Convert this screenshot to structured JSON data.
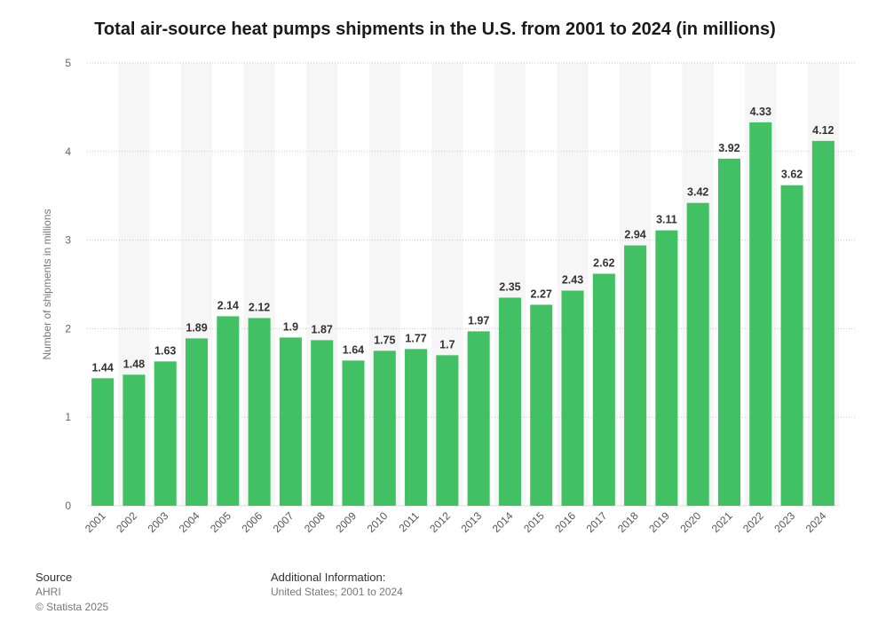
{
  "chart_data": {
    "type": "bar",
    "title": "Total air-source heat pumps shipments in the U.S. from 2001 to 2024 (in millions)",
    "xlabel": "",
    "ylabel": "Number of shipments in millions",
    "ylim": [
      0,
      5
    ],
    "yticks": [
      0,
      1,
      2,
      3,
      4,
      5
    ],
    "grid": true,
    "categories": [
      "2001",
      "2002",
      "2003",
      "2004",
      "2005",
      "2006",
      "2007",
      "2008",
      "2009",
      "2010",
      "2011",
      "2012",
      "2013",
      "2014",
      "2015",
      "2016",
      "2017",
      "2018",
      "2019",
      "2020",
      "2021",
      "2022",
      "2023",
      "2024"
    ],
    "values": [
      1.44,
      1.48,
      1.63,
      1.89,
      2.14,
      2.12,
      1.9,
      1.87,
      1.64,
      1.75,
      1.77,
      1.7,
      1.97,
      2.35,
      2.27,
      2.43,
      2.62,
      2.94,
      3.11,
      3.42,
      3.92,
      4.33,
      3.62,
      4.12
    ],
    "bar_color": "#41c164",
    "stripe_color": "#f6f6f6"
  },
  "footer": {
    "source_heading": "Source",
    "source_name": "AHRI",
    "copyright": "© Statista 2025",
    "info_heading": "Additional Information:",
    "info_text": "United States; 2001 to 2024"
  }
}
